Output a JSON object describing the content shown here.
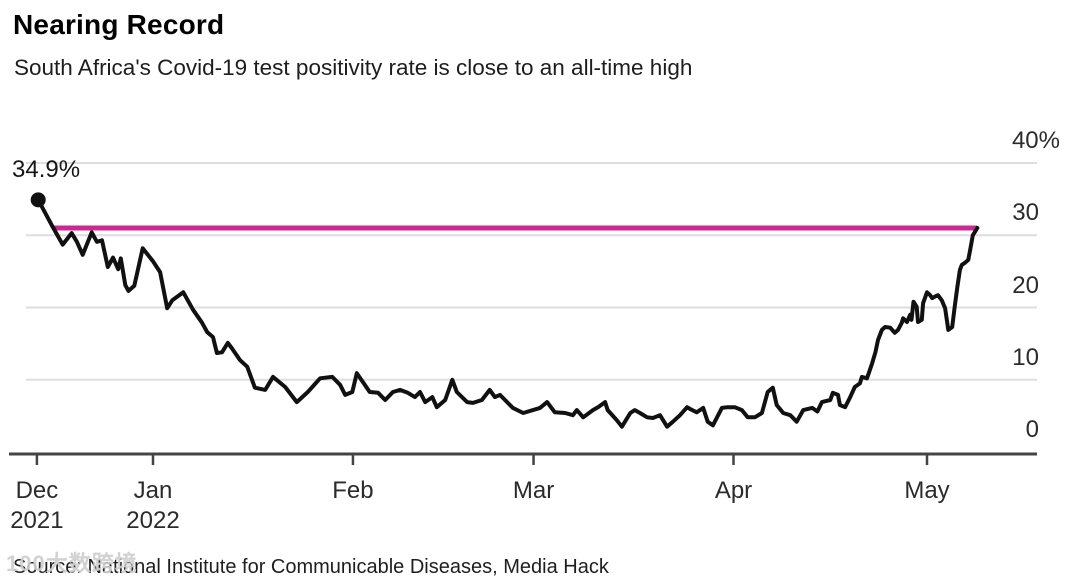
{
  "header": {
    "title": "Nearing Record",
    "subtitle": "South Africa's Covid-19 test positivity rate is close to an all-time high"
  },
  "source_line": "Source: National Institute for Communicable Diseases, Media Hack",
  "watermark": "100大数跨境",
  "colors": {
    "record_pink": "#cc2990",
    "line_black": "#111111",
    "grid": "#dedede",
    "axis": "#444444"
  },
  "chart_data": {
    "type": "line",
    "title": "Nearing Record",
    "subtitle": "South Africa's Covid-19 test positivity rate is close to an all-time high",
    "unit": "%",
    "ylim": [
      0,
      40
    ],
    "grid": true,
    "legend": "none",
    "y_axis": {
      "side": "right",
      "ticks": [
        {
          "label": "40%",
          "value": 40
        },
        {
          "label": "30",
          "value": 30
        },
        {
          "label": "20",
          "value": 20
        },
        {
          "label": "10",
          "value": 10
        },
        {
          "label": "0",
          "value": 0
        }
      ]
    },
    "x_axis": {
      "unit": "days from 2022-01-01",
      "ticks": [
        {
          "label": "Dec",
          "sublabel": "2021",
          "day": -18
        },
        {
          "label": "Jan",
          "sublabel": "2022",
          "day": 0
        },
        {
          "label": "Feb",
          "sublabel": "",
          "day": 31
        },
        {
          "label": "Mar",
          "sublabel": "",
          "day": 59
        },
        {
          "label": "Apr",
          "sublabel": "",
          "day": 90
        },
        {
          "label": "May",
          "sublabel": "",
          "day": 120
        }
      ]
    },
    "annotation": {
      "label": "34.9%",
      "day": -17.8,
      "value": 34.9
    },
    "record_line": {
      "value": 31.0,
      "start_day": -15.5,
      "end_day": 127.8
    },
    "series": [
      {
        "name": "Covid-19 test positivity rate",
        "points": [
          [
            -17.8,
            34.9
          ],
          [
            -15.7,
            31.4
          ],
          [
            -14.0,
            28.7
          ],
          [
            -12.6,
            30.3
          ],
          [
            -11.8,
            29.1
          ],
          [
            -10.9,
            27.3
          ],
          [
            -9.5,
            30.4
          ],
          [
            -8.7,
            29.1
          ],
          [
            -7.9,
            29.3
          ],
          [
            -7.0,
            25.6
          ],
          [
            -6.2,
            26.9
          ],
          [
            -5.4,
            25.3
          ],
          [
            -5.0,
            26.8
          ],
          [
            -4.3,
            23.1
          ],
          [
            -3.8,
            22.3
          ],
          [
            -2.9,
            23.0
          ],
          [
            -1.6,
            28.2
          ],
          [
            0.0,
            26.4
          ],
          [
            1.1,
            24.9
          ],
          [
            2.2,
            19.9
          ],
          [
            3.0,
            21.0
          ],
          [
            4.7,
            22.1
          ],
          [
            6.2,
            19.7
          ],
          [
            7.6,
            17.9
          ],
          [
            8.4,
            16.6
          ],
          [
            9.3,
            15.9
          ],
          [
            9.9,
            13.7
          ],
          [
            10.7,
            13.8
          ],
          [
            11.6,
            15.1
          ],
          [
            12.2,
            14.4
          ],
          [
            13.5,
            12.7
          ],
          [
            14.6,
            11.8
          ],
          [
            15.8,
            8.9
          ],
          [
            17.4,
            8.6
          ],
          [
            18.6,
            10.4
          ],
          [
            20.5,
            9.0
          ],
          [
            22.3,
            6.9
          ],
          [
            24.0,
            8.3
          ],
          [
            25.9,
            10.2
          ],
          [
            27.8,
            10.4
          ],
          [
            29.0,
            9.3
          ],
          [
            29.8,
            7.9
          ],
          [
            30.9,
            8.3
          ],
          [
            31.6,
            10.9
          ],
          [
            32.6,
            9.6
          ],
          [
            33.6,
            8.3
          ],
          [
            34.9,
            8.2
          ],
          [
            36.0,
            7.2
          ],
          [
            37.2,
            8.3
          ],
          [
            38.3,
            8.6
          ],
          [
            39.5,
            8.2
          ],
          [
            40.6,
            7.6
          ],
          [
            41.4,
            8.3
          ],
          [
            42.2,
            6.9
          ],
          [
            43.3,
            7.6
          ],
          [
            44.0,
            6.2
          ],
          [
            45.3,
            7.2
          ],
          [
            46.4,
            10.0
          ],
          [
            47.1,
            8.3
          ],
          [
            48.7,
            6.9
          ],
          [
            49.6,
            6.8
          ],
          [
            51.0,
            7.2
          ],
          [
            52.2,
            8.6
          ],
          [
            53.0,
            7.6
          ],
          [
            53.8,
            7.9
          ],
          [
            54.9,
            6.9
          ],
          [
            55.8,
            6.1
          ],
          [
            57.4,
            5.4
          ],
          [
            60.0,
            6.1
          ],
          [
            61.1,
            6.9
          ],
          [
            62.3,
            5.5
          ],
          [
            63.9,
            5.4
          ],
          [
            65.1,
            5.1
          ],
          [
            65.7,
            5.8
          ],
          [
            66.7,
            4.8
          ],
          [
            68.2,
            5.8
          ],
          [
            69.0,
            6.2
          ],
          [
            70.1,
            6.9
          ],
          [
            70.5,
            5.8
          ],
          [
            71.9,
            4.4
          ],
          [
            72.7,
            3.5
          ],
          [
            74.0,
            5.4
          ],
          [
            74.7,
            5.8
          ],
          [
            75.5,
            5.4
          ],
          [
            76.6,
            4.8
          ],
          [
            77.5,
            4.7
          ],
          [
            78.6,
            5.1
          ],
          [
            79.7,
            3.5
          ],
          [
            80.6,
            4.2
          ],
          [
            81.7,
            5.1
          ],
          [
            82.8,
            6.2
          ],
          [
            83.6,
            5.8
          ],
          [
            84.3,
            5.5
          ],
          [
            85.3,
            6.1
          ],
          [
            86.0,
            4.2
          ],
          [
            86.8,
            3.7
          ],
          [
            88.2,
            6.1
          ],
          [
            89.1,
            6.2
          ],
          [
            90.2,
            6.2
          ],
          [
            91.3,
            5.8
          ],
          [
            92.2,
            4.8
          ],
          [
            93.3,
            4.8
          ],
          [
            94.4,
            5.4
          ],
          [
            95.3,
            8.3
          ],
          [
            96.1,
            8.9
          ],
          [
            96.7,
            6.5
          ],
          [
            97.7,
            5.4
          ],
          [
            98.8,
            5.1
          ],
          [
            99.8,
            4.2
          ],
          [
            100.8,
            5.8
          ],
          [
            102.2,
            6.1
          ],
          [
            103.0,
            5.6
          ],
          [
            103.7,
            6.9
          ],
          [
            105.0,
            7.2
          ],
          [
            105.4,
            8.2
          ],
          [
            106.2,
            7.9
          ],
          [
            106.5,
            6.5
          ],
          [
            107.3,
            6.2
          ],
          [
            108.1,
            7.6
          ],
          [
            108.8,
            9.0
          ],
          [
            109.6,
            9.5
          ],
          [
            109.9,
            10.4
          ],
          [
            110.7,
            10.2
          ],
          [
            111.5,
            12.3
          ],
          [
            112.0,
            13.8
          ],
          [
            112.4,
            15.5
          ],
          [
            113.0,
            16.9
          ],
          [
            113.5,
            17.3
          ],
          [
            114.3,
            17.2
          ],
          [
            115.0,
            16.5
          ],
          [
            115.5,
            16.9
          ],
          [
            116.1,
            17.9
          ],
          [
            116.3,
            18.5
          ],
          [
            116.9,
            18.0
          ],
          [
            117.4,
            19.0
          ],
          [
            117.6,
            18.3
          ],
          [
            117.9,
            20.8
          ],
          [
            118.4,
            20.1
          ],
          [
            118.6,
            18.0
          ],
          [
            119.2,
            18.3
          ],
          [
            119.4,
            20.6
          ],
          [
            120.0,
            22.1
          ],
          [
            120.5,
            21.7
          ],
          [
            120.8,
            21.3
          ],
          [
            121.2,
            21.5
          ],
          [
            121.7,
            21.7
          ],
          [
            122.3,
            21.0
          ],
          [
            122.8,
            19.9
          ],
          [
            123.3,
            16.9
          ],
          [
            123.9,
            17.3
          ],
          [
            124.3,
            20.1
          ],
          [
            124.7,
            22.8
          ],
          [
            125.1,
            25.2
          ],
          [
            125.4,
            25.9
          ],
          [
            125.9,
            26.2
          ],
          [
            126.4,
            26.6
          ],
          [
            126.7,
            28.0
          ],
          [
            127.1,
            30.0
          ],
          [
            127.8,
            31.0
          ]
        ]
      }
    ],
    "source": "Source: National Institute for Communicable Diseases, Media Hack"
  }
}
